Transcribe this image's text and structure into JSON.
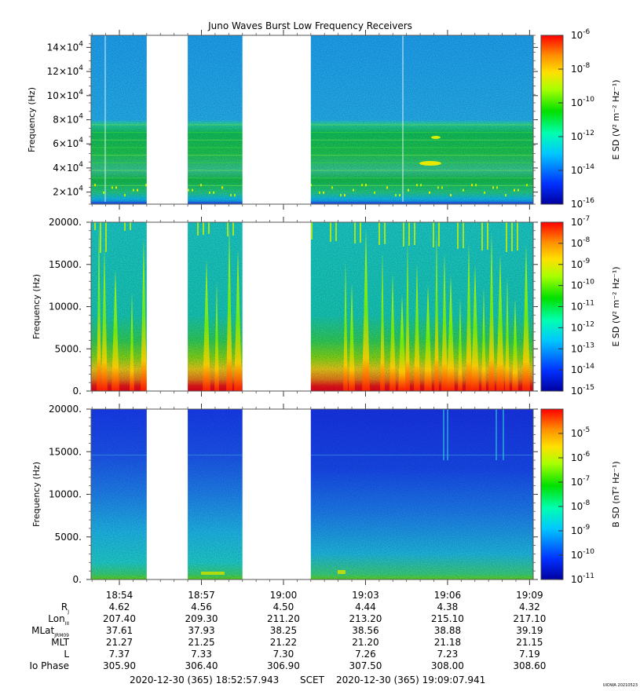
{
  "title": "Juno Waves Burst Low Frequency Receivers",
  "credit": "UIOWA 20210523",
  "time_ticks": [
    "18:54",
    "18:57",
    "19:00",
    "19:03",
    "19:06",
    "19:09"
  ],
  "ephemeris": {
    "rows": [
      {
        "label": "R",
        "sub": "J",
        "values": [
          "4.62",
          "4.56",
          "4.50",
          "4.44",
          "4.38",
          "4.32"
        ]
      },
      {
        "label": "Lon",
        "sub": "III",
        "values": [
          "207.40",
          "209.30",
          "211.20",
          "213.20",
          "215.10",
          "217.10"
        ]
      },
      {
        "label": "MLat",
        "sub": "JRM09",
        "values": [
          "37.61",
          "37.93",
          "38.25",
          "38.56",
          "38.88",
          "39.19"
        ]
      },
      {
        "label": "MLT",
        "sub": "",
        "values": [
          "21.27",
          "21.25",
          "21.22",
          "21.20",
          "21.18",
          "21.15"
        ]
      },
      {
        "label": "L",
        "sub": "",
        "values": [
          "7.37",
          "7.33",
          "7.30",
          "7.26",
          "7.23",
          "7.19"
        ]
      },
      {
        "label": "Io Phase",
        "sub": "",
        "values": [
          "305.90",
          "306.40",
          "306.90",
          "307.50",
          "308.00",
          "308.60"
        ]
      }
    ]
  },
  "footer": {
    "start": "2020-12-30 (365) 18:52:57.943",
    "scet": "SCET",
    "end": "2020-12-30 (365) 19:09:07.941"
  },
  "chart_data": [
    {
      "type": "heatmap",
      "time_start": "18:52:57.943",
      "time_end": "19:09:07.941",
      "data_gaps": [
        [
          "18:55:00",
          "18:56:30"
        ],
        [
          "18:58:30",
          "19:01:00"
        ]
      ],
      "ylabel": "Frequency (Hz)",
      "ylim": [
        10000,
        150000
      ],
      "yticks": [
        {
          "mant": "2",
          "exp": "4"
        },
        {
          "mant": "4",
          "exp": "4"
        },
        {
          "mant": "6",
          "exp": "4"
        },
        {
          "mant": "8",
          "exp": "4"
        },
        {
          "mant": "10",
          "exp": "4"
        },
        {
          "mant": "12",
          "exp": "4"
        },
        {
          "mant": "14",
          "exp": "4"
        }
      ],
      "colorbar_label": "E SD (V² m⁻² Hz⁻¹)",
      "colorbar_range_log10": [
        -16,
        -6
      ],
      "colorbar_ticks": [
        "-6",
        "-8",
        "-10",
        "-12",
        "-14",
        "-16"
      ]
    },
    {
      "type": "heatmap",
      "ylabel": "Frequency (Hz)",
      "ylim": [
        0,
        20000
      ],
      "yticks": [
        "20000.",
        "15000.",
        "10000.",
        "5000.",
        "0."
      ],
      "colorbar_label": "E SD (V² m⁻² Hz⁻¹)",
      "colorbar_range_log10": [
        -15,
        -7
      ],
      "colorbar_ticks": [
        "-7",
        "-8",
        "-9",
        "-10",
        "-11",
        "-12",
        "-13",
        "-14",
        "-15"
      ]
    },
    {
      "type": "heatmap",
      "ylabel": "Frequency (Hz)",
      "ylim": [
        0,
        20000
      ],
      "yticks": [
        "20000.",
        "15000.",
        "10000.",
        "5000.",
        "0."
      ],
      "colorbar_label": "B SD (nT² Hz⁻¹)",
      "colorbar_range_log10": [
        -11,
        -4
      ],
      "colorbar_ticks": [
        "-5",
        "-6",
        "-7",
        "-8",
        "-9",
        "-10",
        "-11"
      ]
    }
  ],
  "colors": {
    "scale": [
      "#0000a0",
      "#0030ff",
      "#00c8ff",
      "#00ffb0",
      "#00e000",
      "#a8ff00",
      "#ffe000",
      "#ff9000",
      "#ff0000"
    ]
  }
}
